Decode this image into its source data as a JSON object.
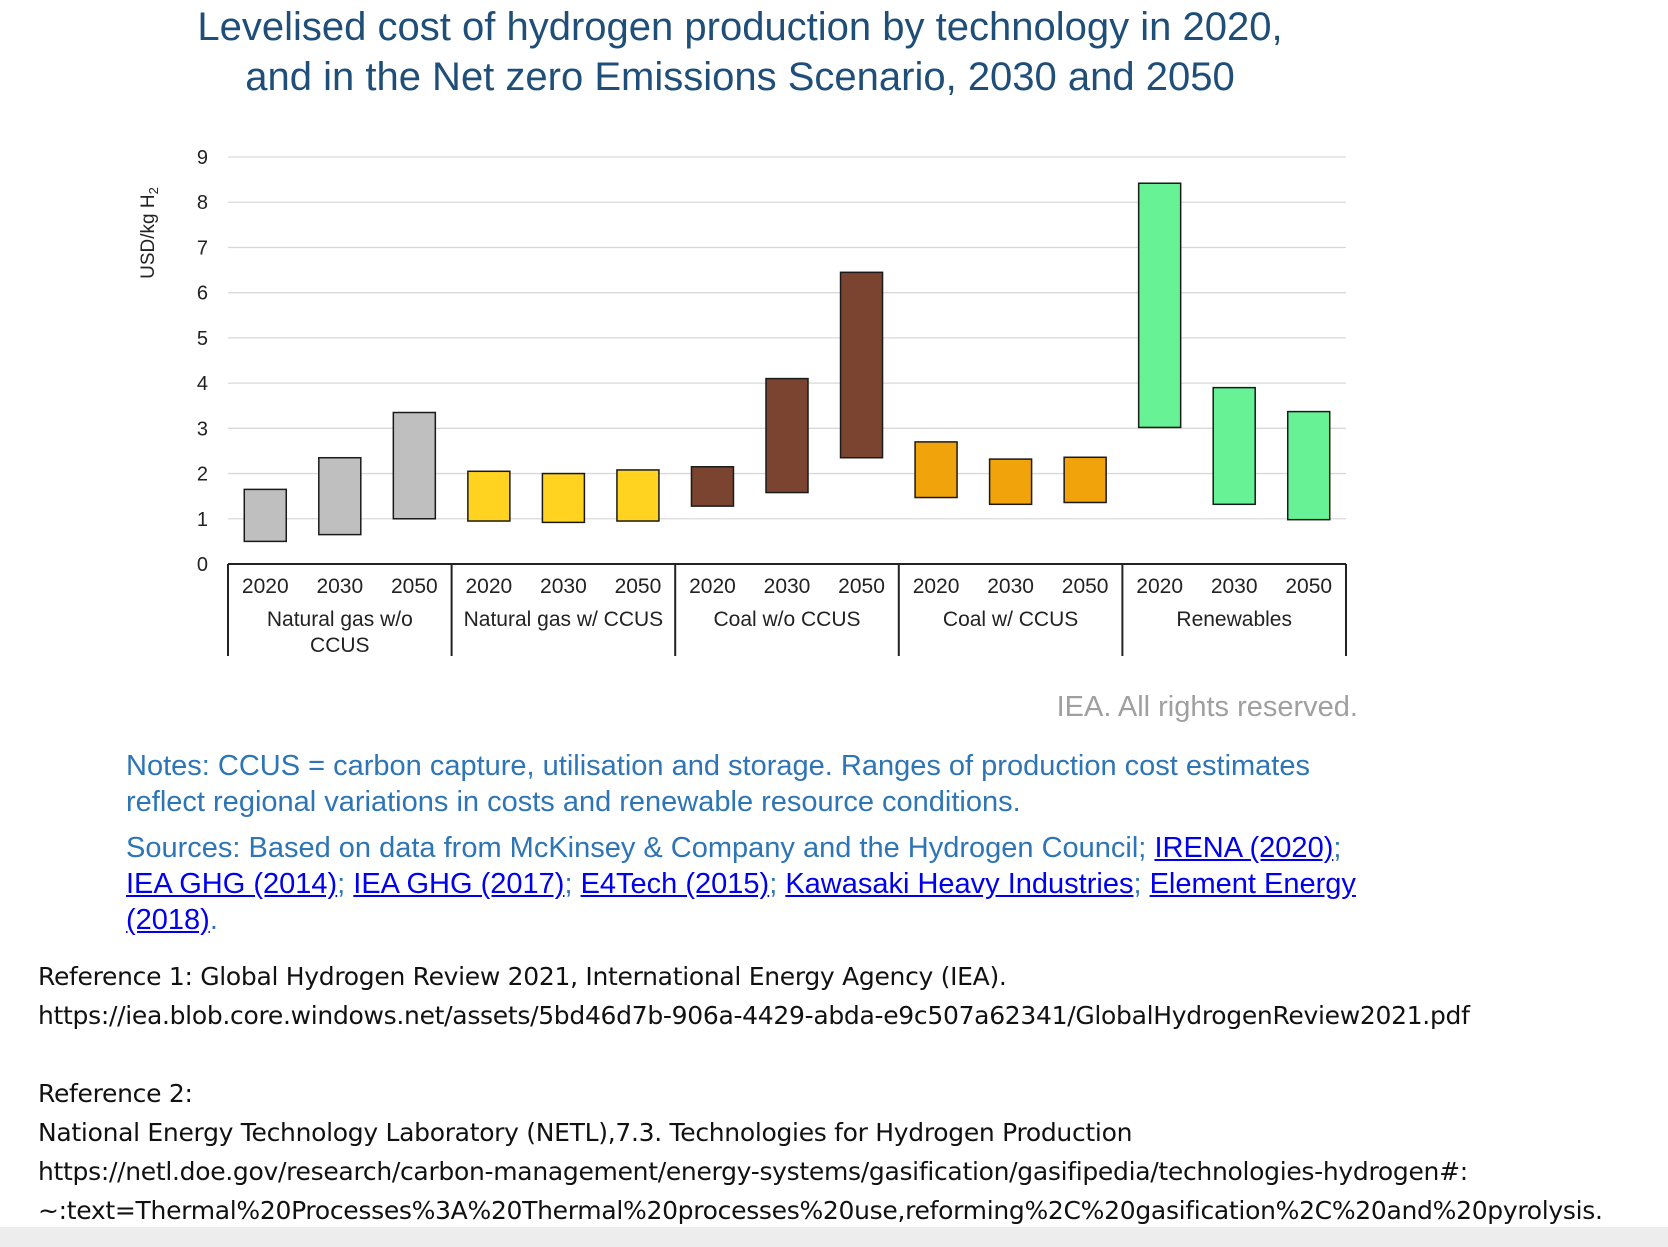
{
  "title_line1": "Levelised cost of hydrogen production by technology in 2020,",
  "title_line2": "and in the Net zero Emissions Scenario, 2030 and 2050",
  "rights": "IEA. All rights reserved.",
  "notes": "Notes: CCUS = carbon capture, utilisation and storage. Ranges of production cost estimates reflect regional variations in costs and renewable resource conditions.",
  "sources": {
    "prefix": "Sources: Based on data from McKinsey & Company and the Hydrogen Council; ",
    "links": [
      "IRENA (2020)",
      "IEA GHG (2014)",
      "IEA GHG (2017)",
      "E4Tech (2015)",
      "Kawasaki Heavy Industries",
      "Element Energy (2018)"
    ],
    "separator": "; ",
    "suffix": "."
  },
  "reference1": {
    "label": "Reference 1: Global Hydrogen Review 2021, International Energy Agency (IEA).",
    "url": "https://iea.blob.core.windows.net/assets/5bd46d7b-906a-4429-abda-e9c507a62341/GlobalHydrogenReview2021.pdf"
  },
  "reference2": {
    "label": "Reference 2:",
    "line1": "National Energy Technology Laboratory (NETL),7.3. Technologies for Hydrogen Production",
    "url_line1": "https://netl.doe.gov/research/carbon-management/energy-systems/gasification/gasifipedia/technologies-hydrogen#:",
    "url_line2": "~:text=Thermal%20Processes%3A%20Thermal%20processes%20use,reforming%2C%20gasification%2C%20and%20pyrolysis."
  },
  "chart_data": {
    "type": "bar",
    "subtype": "floating-range",
    "ylabel": "USD/kg H",
    "ylabel_subscript": "2",
    "ylim": [
      0,
      9
    ],
    "yticks": [
      0,
      1,
      2,
      3,
      4,
      5,
      6,
      7,
      8,
      9
    ],
    "grid": true,
    "groups": [
      {
        "name": "Natural gas w/o CCUS",
        "name_lines": [
          "Natural gas w/o",
          "CCUS"
        ],
        "color": "#bfbfbf",
        "bars": [
          {
            "year": "2020",
            "low": 0.5,
            "high": 1.65
          },
          {
            "year": "2030",
            "low": 0.65,
            "high": 2.35
          },
          {
            "year": "2050",
            "low": 1.0,
            "high": 3.35
          }
        ]
      },
      {
        "name": "Natural gas w/ CCUS",
        "name_lines": [
          "Natural gas w/ CCUS"
        ],
        "color": "#ffd320",
        "bars": [
          {
            "year": "2020",
            "low": 0.95,
            "high": 2.05
          },
          {
            "year": "2030",
            "low": 0.92,
            "high": 2.0
          },
          {
            "year": "2050",
            "low": 0.95,
            "high": 2.08
          }
        ]
      },
      {
        "name": "Coal w/o CCUS",
        "name_lines": [
          "Coal w/o CCUS"
        ],
        "color": "#7b4430",
        "bars": [
          {
            "year": "2020",
            "low": 1.28,
            "high": 2.15
          },
          {
            "year": "2030",
            "low": 1.58,
            "high": 4.1
          },
          {
            "year": "2050",
            "low": 2.35,
            "high": 6.45
          }
        ]
      },
      {
        "name": "Coal w/ CCUS",
        "name_lines": [
          "Coal w/ CCUS"
        ],
        "color": "#f0a30a",
        "bars": [
          {
            "year": "2020",
            "low": 1.47,
            "high": 2.7
          },
          {
            "year": "2030",
            "low": 1.32,
            "high": 2.32
          },
          {
            "year": "2050",
            "low": 1.36,
            "high": 2.36
          }
        ]
      },
      {
        "name": "Renewables",
        "name_lines": [
          "Renewables"
        ],
        "color": "#66f295",
        "bars": [
          {
            "year": "2020",
            "low": 3.02,
            "high": 8.42
          },
          {
            "year": "2030",
            "low": 1.32,
            "high": 3.9
          },
          {
            "year": "2050",
            "low": 0.98,
            "high": 3.37
          }
        ]
      }
    ]
  }
}
